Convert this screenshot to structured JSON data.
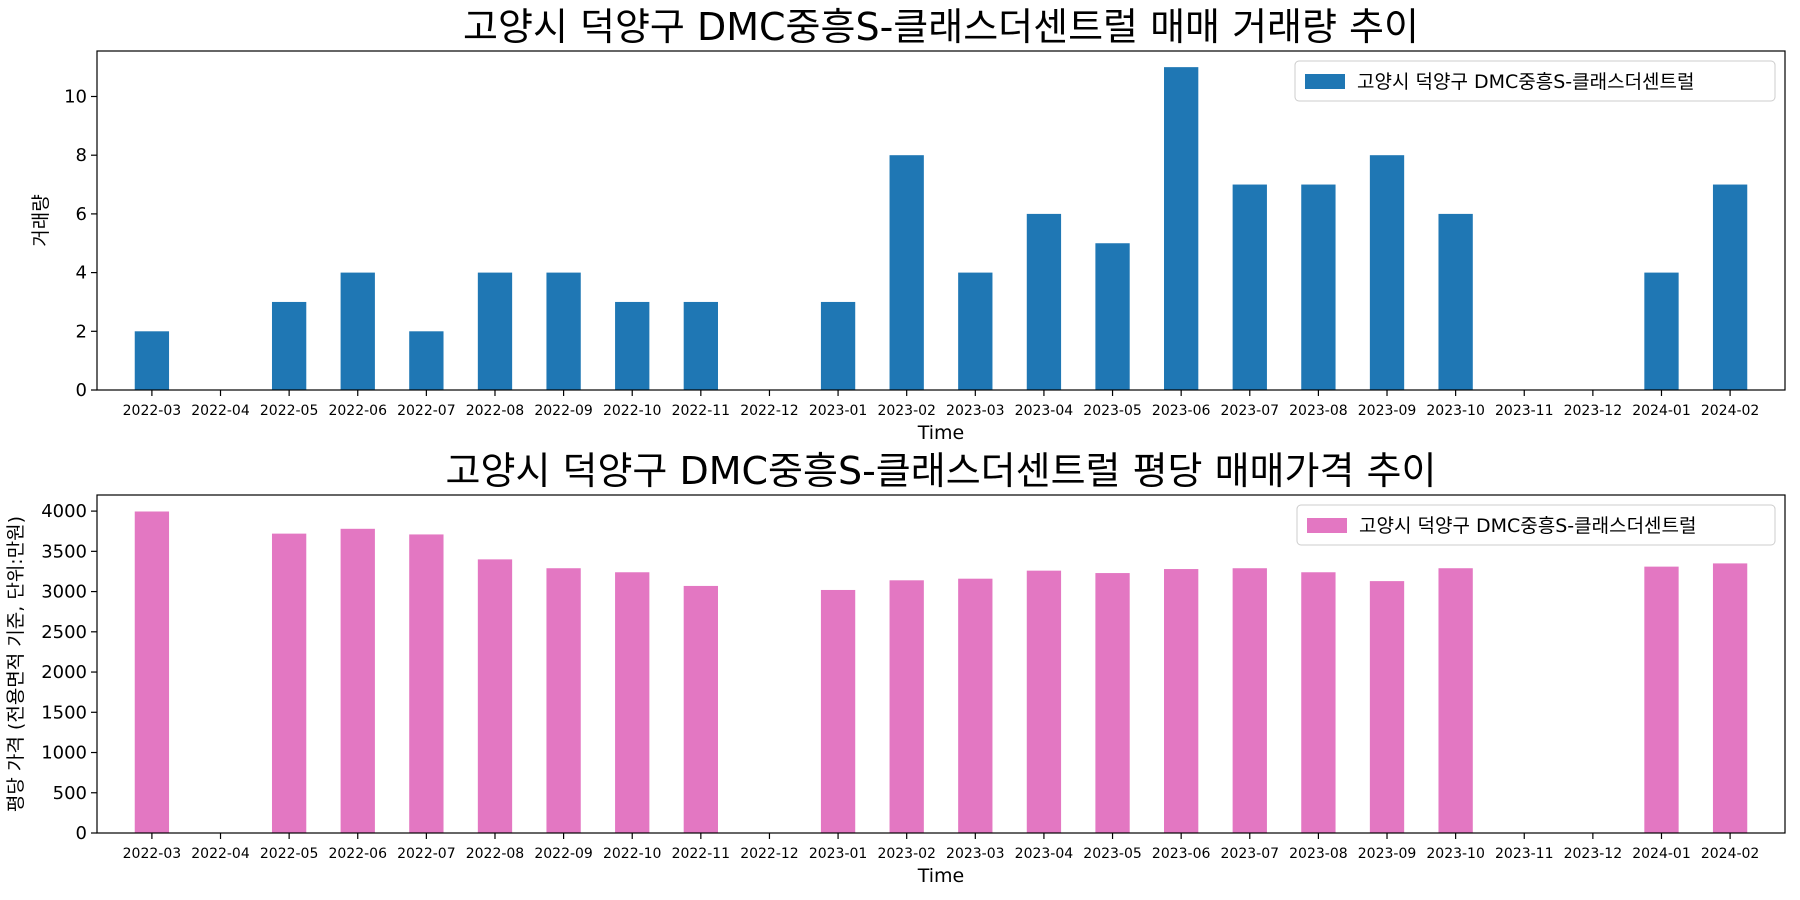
{
  "chart_data": [
    {
      "type": "bar",
      "title": "고양시 덕양구 DMC중흥S-클래스더센트럴 매매 거래량 추이",
      "xlabel": "Time",
      "ylabel": "거래량",
      "ylim": [
        0,
        11.55
      ],
      "yticks": [
        0,
        2,
        4,
        6,
        8,
        10
      ],
      "grid": false,
      "legend_position": "top-right",
      "categories": [
        "2022-03",
        "2022-04",
        "2022-05",
        "2022-06",
        "2022-07",
        "2022-08",
        "2022-09",
        "2022-10",
        "2022-11",
        "2022-12",
        "2023-01",
        "2023-02",
        "2023-03",
        "2023-04",
        "2023-05",
        "2023-06",
        "2023-07",
        "2023-08",
        "2023-09",
        "2023-10",
        "2023-11",
        "2023-12",
        "2024-01",
        "2024-02"
      ],
      "series": [
        {
          "name": "고양시 덕양구 DMC중흥S-클래스더센트럴",
          "color": "#1f77b4",
          "values": [
            2,
            0,
            3,
            4,
            2,
            4,
            4,
            3,
            3,
            0,
            3,
            8,
            4,
            6,
            5,
            11,
            7,
            7,
            8,
            6,
            0,
            0,
            4,
            7
          ]
        }
      ]
    },
    {
      "type": "bar",
      "title": "고양시 덕양구 DMC중흥S-클래스더센트럴 평당 매매가격 추이",
      "xlabel": "Time",
      "ylabel": "평당 가격 (전용면적 기준, 단위:만원)",
      "ylim": [
        0,
        4200
      ],
      "yticks": [
        0,
        500,
        1000,
        1500,
        2000,
        2500,
        3000,
        3500,
        4000
      ],
      "grid": false,
      "legend_position": "top-right",
      "categories": [
        "2022-03",
        "2022-04",
        "2022-05",
        "2022-06",
        "2022-07",
        "2022-08",
        "2022-09",
        "2022-10",
        "2022-11",
        "2022-12",
        "2023-01",
        "2023-02",
        "2023-03",
        "2023-04",
        "2023-05",
        "2023-06",
        "2023-07",
        "2023-08",
        "2023-09",
        "2023-10",
        "2023-11",
        "2023-12",
        "2024-01",
        "2024-02"
      ],
      "series": [
        {
          "name": "고양시 덕양구 DMC중흥S-클래스더센트럴",
          "color": "#e377c2",
          "values": [
            3995,
            0,
            3720,
            3780,
            3710,
            3400,
            3290,
            3240,
            3070,
            0,
            3020,
            3140,
            3160,
            3260,
            3230,
            3280,
            3290,
            3240,
            3130,
            3290,
            0,
            0,
            3310,
            3350
          ]
        }
      ]
    }
  ]
}
